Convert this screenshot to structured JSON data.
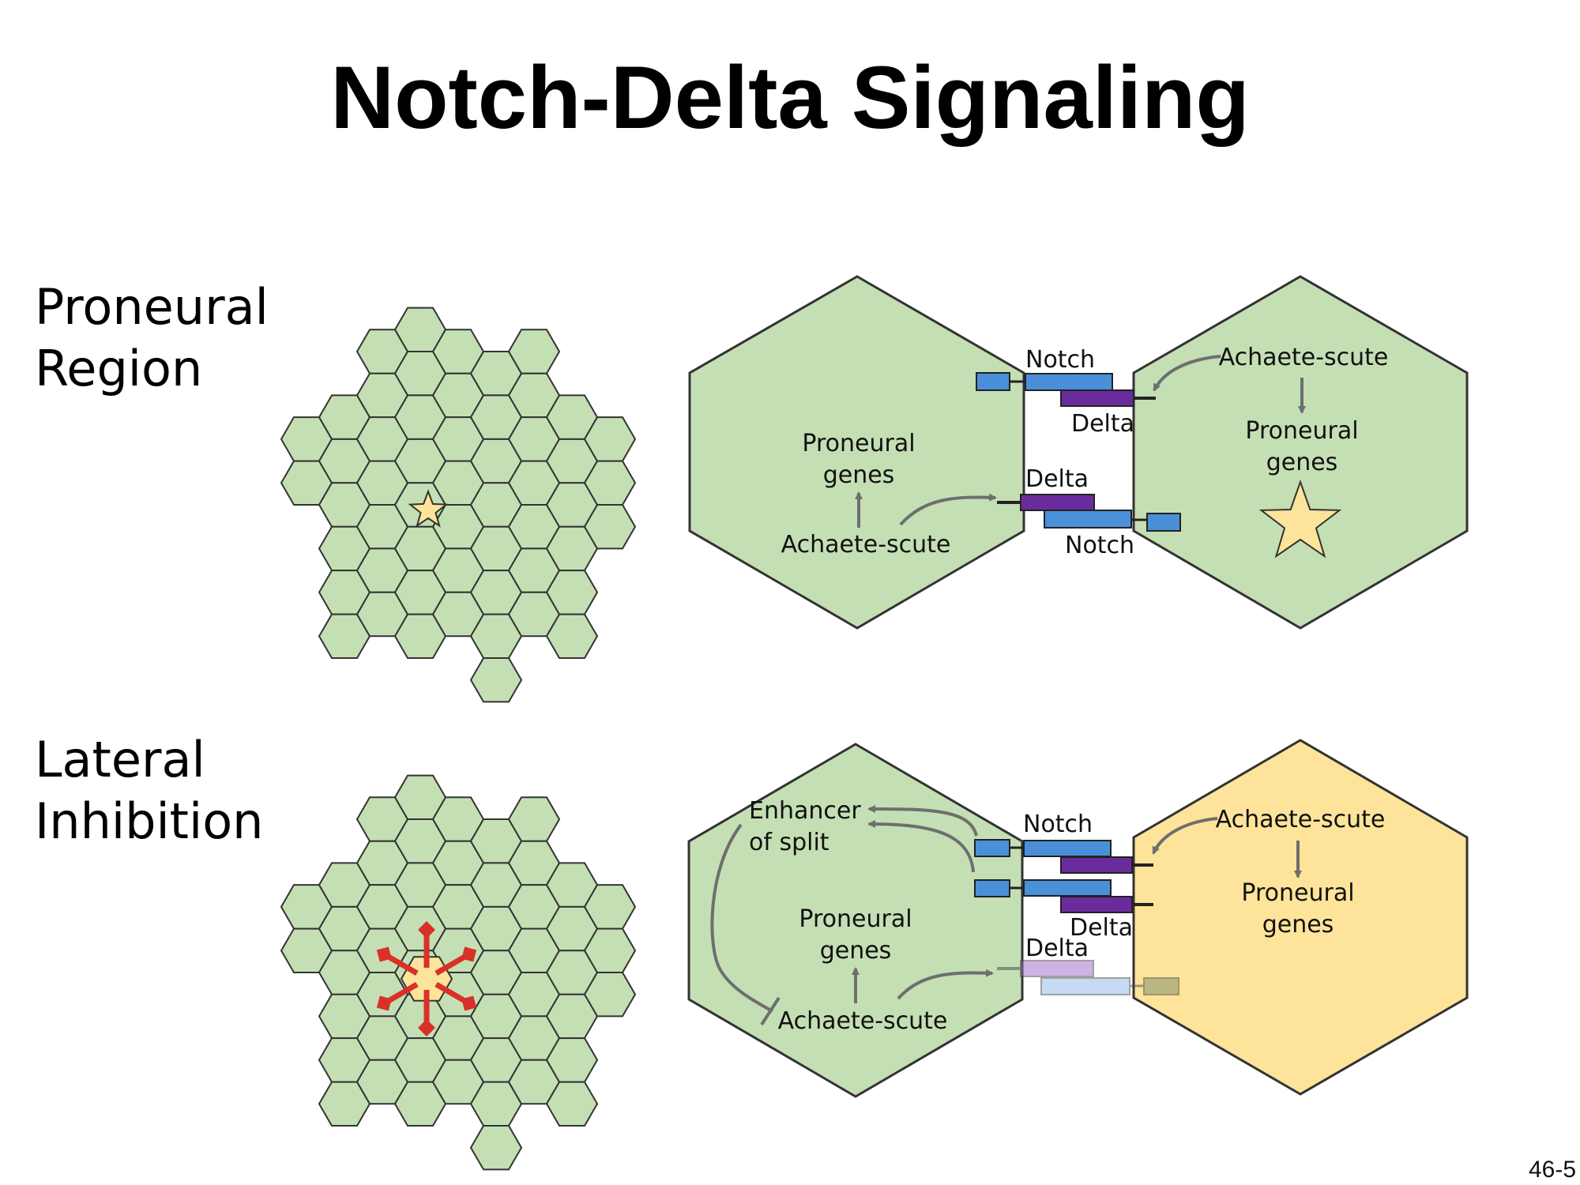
{
  "slide": {
    "title": "Notch-Delta Signaling",
    "page_number": "46-5"
  },
  "rows": [
    {
      "label_line1": "Proneural",
      "label_line2": "Region",
      "left_cell": {
        "proneural_line1": "Proneural",
        "proneural_line2": "genes",
        "achaete": "Achaete-scute"
      },
      "junction": {
        "notch_top": "Notch",
        "delta_top": "Delta",
        "delta_bottom": "Delta",
        "notch_bottom": "Notch"
      },
      "right_cell": {
        "achaete": "Achaete-scute",
        "proneural_line1": "Proneural",
        "proneural_line2": "genes"
      }
    },
    {
      "label_line1": "Lateral",
      "label_line2": "Inhibition",
      "left_cell": {
        "enhancer_line1": "Enhancer",
        "enhancer_line2": "of split",
        "proneural_line1": "Proneural",
        "proneural_line2": "genes",
        "achaete": "Achaete-scute"
      },
      "junction": {
        "notch_top": "Notch",
        "delta_top": "Delta",
        "delta_bottom": "Delta"
      },
      "right_cell": {
        "achaete": "Achaete-scute",
        "proneural_line1": "Proneural",
        "proneural_line2": "genes"
      }
    }
  ],
  "colors": {
    "cell_green": "#c5dfb4",
    "cell_yellow": "#fde49a",
    "notch_blue": "#4a90d9",
    "delta_purple": "#6a2c9c",
    "arrow_gray": "#6e6e6e",
    "signal_red": "#d9302a",
    "star_fill": "#fce49a"
  }
}
